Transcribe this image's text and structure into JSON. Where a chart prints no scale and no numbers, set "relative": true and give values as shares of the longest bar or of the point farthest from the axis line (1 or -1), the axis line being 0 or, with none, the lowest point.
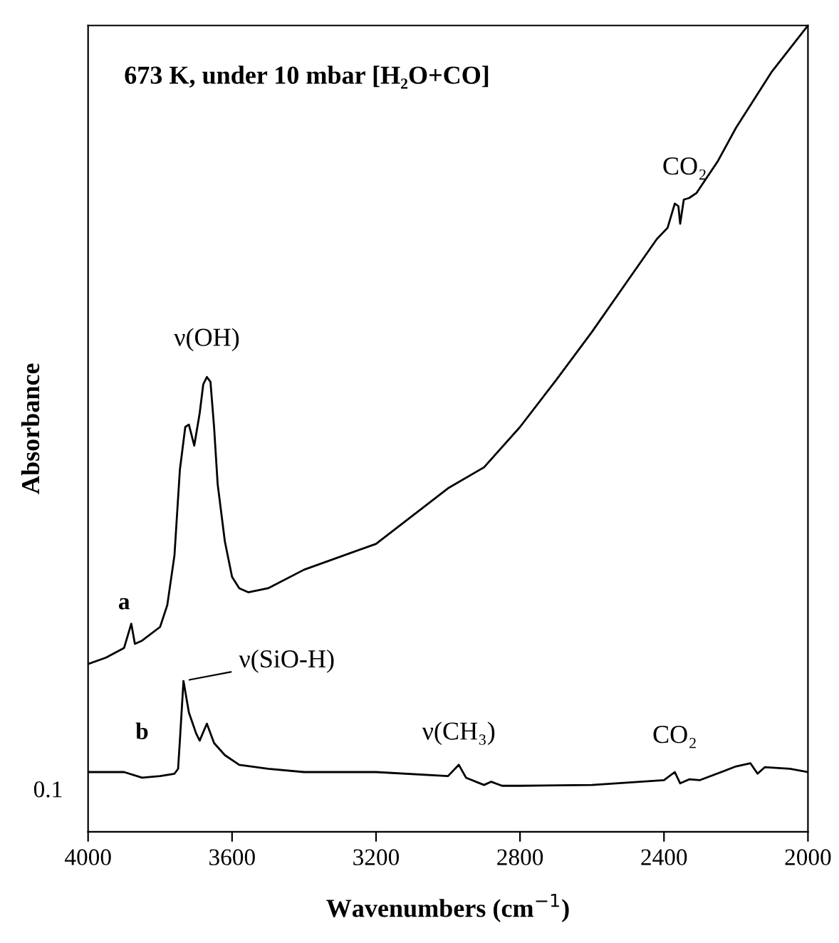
{
  "chart_data": {
    "type": "line",
    "title": "673 K, under 10 mbar [H₂O+CO]",
    "xlabel": "Wavenumbers (cm$^{−1}$)",
    "ylabel": "Absorbance",
    "relative": true,
    "xlim": [
      4000,
      2000
    ],
    "xticks": [
      4000,
      3600,
      3200,
      2800,
      2400,
      2000
    ],
    "grid": false,
    "legend": false,
    "marker": "none",
    "line_style": "solid",
    "series": [
      {
        "name": "a",
        "color": "#000000",
        "x": [
          4000,
          3950,
          3900,
          3880,
          3870,
          3850,
          3800,
          3780,
          3760,
          3745,
          3730,
          3720,
          3705,
          3690,
          3680,
          3670,
          3660,
          3650,
          3640,
          3620,
          3600,
          3580,
          3555,
          3500,
          3400,
          3200,
          3000,
          2900,
          2800,
          2700,
          2600,
          2500,
          2420,
          2390,
          2370,
          2360,
          2355,
          2345,
          2330,
          2310,
          2250,
          2200,
          2100,
          2000
        ],
        "values": [
          0.208,
          0.216,
          0.228,
          0.258,
          0.233,
          0.237,
          0.254,
          0.281,
          0.343,
          0.449,
          0.502,
          0.505,
          0.479,
          0.519,
          0.555,
          0.564,
          0.558,
          0.502,
          0.431,
          0.36,
          0.316,
          0.302,
          0.297,
          0.302,
          0.325,
          0.357,
          0.426,
          0.452,
          0.502,
          0.56,
          0.62,
          0.684,
          0.735,
          0.749,
          0.779,
          0.776,
          0.754,
          0.784,
          0.786,
          0.792,
          0.832,
          0.873,
          0.943,
          1.0
        ]
      },
      {
        "name": "b",
        "color": "#000000",
        "x": [
          4000,
          3900,
          3850,
          3800,
          3760,
          3750,
          3745,
          3735,
          3720,
          3700,
          3690,
          3670,
          3650,
          3620,
          3580,
          3500,
          3400,
          3200,
          3000,
          2970,
          2950,
          2900,
          2880,
          2850,
          2800,
          2600,
          2400,
          2370,
          2355,
          2330,
          2300,
          2200,
          2160,
          2140,
          2120,
          2050,
          2000
        ],
        "values": [
          0.074,
          0.074,
          0.067,
          0.069,
          0.072,
          0.078,
          0.113,
          0.187,
          0.148,
          0.122,
          0.113,
          0.134,
          0.11,
          0.095,
          0.083,
          0.078,
          0.074,
          0.074,
          0.069,
          0.083,
          0.067,
          0.058,
          0.062,
          0.057,
          0.057,
          0.058,
          0.064,
          0.074,
          0.06,
          0.065,
          0.064,
          0.081,
          0.085,
          0.072,
          0.08,
          0.078,
          0.074
        ]
      }
    ],
    "annotations": [
      {
        "text": "ν(OH)",
        "x": 3670,
        "y": 0.564
      },
      {
        "text": "CO₂",
        "x": 2370,
        "y": 0.779
      },
      {
        "text": "ν(SiO-H)",
        "x": 3735,
        "y": 0.187
      },
      {
        "text": "ν(CH₃)",
        "x": 2970,
        "y": 0.083
      },
      {
        "text": "CO₂",
        "x": 2370,
        "y": 0.074
      },
      "0.1"
    ]
  }
}
